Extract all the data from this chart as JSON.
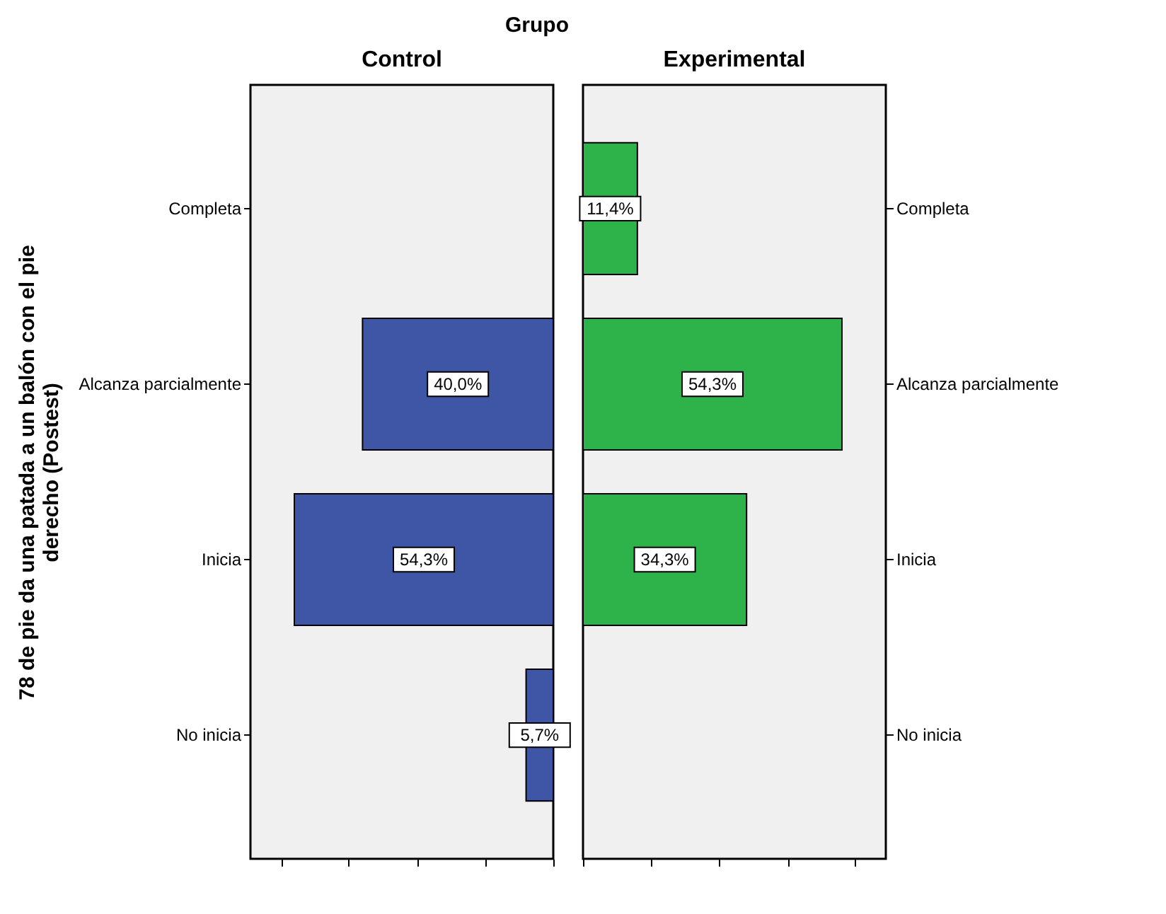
{
  "chart_data": [
    {
      "type": "bar",
      "orientation": "horizontal",
      "title": "Control",
      "ylabel": "78 de pie da una patada a un balón con el pie derecho (Postest)",
      "annotations": [
        "Grupo"
      ],
      "categories": [
        "Completa",
        "Alcanza parcialmente",
        "Inicia",
        "No inicia"
      ],
      "series": [
        {
          "color": "#3f56a6",
          "values": [
            null,
            40.0,
            54.3,
            5.7
          ],
          "value_labels": [
            null,
            "40,0%",
            "54,3%",
            "5,7%"
          ]
        }
      ],
      "xlim": [
        63.5,
        0
      ],
      "xticks": [
        {
          "value": 57.1,
          "label": null
        },
        {
          "value": 42.9,
          "label": null
        },
        {
          "value": 28.6,
          "label": null
        },
        {
          "value": 14.3,
          "label": null
        },
        {
          "value": 0,
          "label": null
        }
      ],
      "tick_labels": "y",
      "grid": false
    },
    {
      "type": "bar",
      "orientation": "horizontal",
      "title": "Experimental",
      "categories": [
        "Completa",
        "Alcanza parcialmente",
        "Inicia",
        "No inicia"
      ],
      "series": [
        {
          "color": "#2db34a",
          "values": [
            11.4,
            54.3,
            34.3,
            null
          ],
          "value_labels": [
            "11,4%",
            "54,3%",
            "34,3%",
            null
          ]
        }
      ],
      "xlim": [
        0,
        63.5
      ],
      "xticks": [
        {
          "value": 0,
          "label": null
        },
        {
          "value": 14.3,
          "label": null
        },
        {
          "value": 28.6,
          "label": null
        },
        {
          "value": 42.9,
          "label": null
        },
        {
          "value": 57.1,
          "label": null
        }
      ],
      "tick_labels": "y",
      "grid": false
    }
  ]
}
